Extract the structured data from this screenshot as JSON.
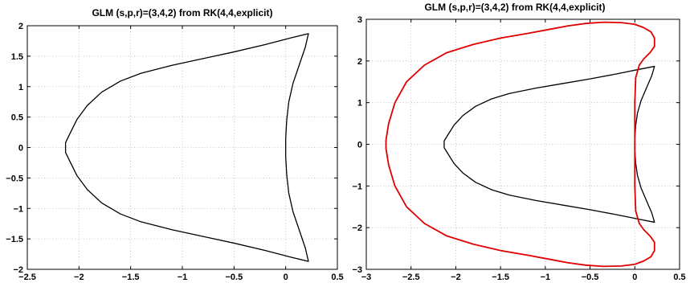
{
  "chart_data": [
    {
      "type": "line",
      "title": "GLM (s,p,r)=(3,4,2) from RK(4,4,explicit)",
      "xlabel": "",
      "ylabel": "",
      "xlim": [
        -2.5,
        0.5
      ],
      "ylim": [
        -2,
        2
      ],
      "xticks": [
        -2.5,
        -2,
        -1.5,
        -1,
        -0.5,
        0,
        0.5
      ],
      "xtick_labels": [
        "−2.5",
        "−2",
        "−1.5",
        "−1",
        "−0.5",
        "0",
        "0.5"
      ],
      "yticks": [
        -2,
        -1.5,
        -1,
        -0.5,
        0,
        0.5,
        1,
        1.5,
        2
      ],
      "ytick_labels": [
        "−2",
        "−1.5",
        "−1",
        "−0.5",
        "0",
        "0.5",
        "1",
        "1.5",
        "2"
      ],
      "grid": true,
      "series": [
        {
          "color": "#000000",
          "x": [
            0.22,
            0.05,
            -0.2,
            -0.5,
            -0.8,
            -1.1,
            -1.4,
            -1.6,
            -1.78,
            -1.92,
            -2.02,
            -2.09,
            -2.13,
            -2.13,
            -2.09,
            -2.02,
            -1.92,
            -1.78,
            -1.6,
            -1.4,
            -1.1,
            -0.8,
            -0.5,
            -0.2,
            0.05,
            0.22,
            0.19,
            0.13,
            0.07,
            0.03,
            0.01,
            0.0,
            0.0,
            0.0,
            0.01,
            0.03,
            0.07,
            0.13,
            0.19,
            0.22
          ],
          "y": [
            1.87,
            1.8,
            1.69,
            1.57,
            1.46,
            1.35,
            1.22,
            1.09,
            0.91,
            0.69,
            0.46,
            0.22,
            0.08,
            -0.08,
            -0.22,
            -0.46,
            -0.69,
            -0.91,
            -1.09,
            -1.22,
            -1.35,
            -1.46,
            -1.57,
            -1.69,
            -1.8,
            -1.87,
            -1.65,
            -1.35,
            -1.05,
            -0.75,
            -0.45,
            -0.15,
            0.0,
            0.15,
            0.45,
            0.75,
            1.05,
            1.35,
            1.65,
            1.87
          ]
        }
      ]
    },
    {
      "type": "line",
      "title": "GLM (s,p,r)=(3,4,2) from RK(4,4,explicit)",
      "xlabel": "",
      "ylabel": "",
      "xlim": [
        -3,
        0.5
      ],
      "ylim": [
        -3,
        3
      ],
      "xticks": [
        -3,
        -2.5,
        -2,
        -1.5,
        -1,
        -0.5,
        0,
        0.5
      ],
      "xtick_labels": [
        "−3",
        "−2.5",
        "−2",
        "−1.5",
        "−1",
        "−0.5",
        "0",
        "0.5"
      ],
      "yticks": [
        -3,
        -2,
        -1,
        0,
        1,
        2,
        3
      ],
      "ytick_labels": [
        "−3",
        "−2",
        "−1",
        "0",
        "1",
        "2",
        "3"
      ],
      "grid": true,
      "series": [
        {
          "color": "#000000",
          "x": [
            0.22,
            0.05,
            -0.2,
            -0.5,
            -0.8,
            -1.1,
            -1.4,
            -1.6,
            -1.78,
            -1.92,
            -2.02,
            -2.09,
            -2.13,
            -2.13,
            -2.09,
            -2.02,
            -1.92,
            -1.78,
            -1.6,
            -1.4,
            -1.1,
            -0.8,
            -0.5,
            -0.2,
            0.05,
            0.22,
            0.19,
            0.13,
            0.07,
            0.03,
            0.01,
            0.0,
            0.0,
            0.0,
            0.01,
            0.03,
            0.07,
            0.13,
            0.19,
            0.22
          ],
          "y": [
            1.87,
            1.8,
            1.69,
            1.57,
            1.46,
            1.35,
            1.22,
            1.09,
            0.91,
            0.69,
            0.46,
            0.22,
            0.08,
            -0.08,
            -0.22,
            -0.46,
            -0.69,
            -0.91,
            -1.09,
            -1.22,
            -1.35,
            -1.46,
            -1.57,
            -1.69,
            -1.8,
            -1.87,
            -1.65,
            -1.35,
            -1.05,
            -0.75,
            -0.45,
            -0.15,
            0.0,
            0.15,
            0.45,
            0.75,
            1.05,
            1.35,
            1.65,
            1.87
          ]
        },
        {
          "color": "#e00000",
          "x": [
            0.0,
            0.0,
            0.01,
            0.05,
            0.1,
            0.17,
            0.22,
            0.22,
            0.18,
            0.1,
            0.0,
            -0.15,
            -0.35,
            -0.55,
            -0.75,
            -0.95,
            -1.2,
            -1.5,
            -1.8,
            -2.1,
            -2.35,
            -2.55,
            -2.68,
            -2.75,
            -2.78,
            -2.78,
            -2.78,
            -2.75,
            -2.68,
            -2.55,
            -2.35,
            -2.1,
            -1.8,
            -1.5,
            -1.2,
            -0.95,
            -0.75,
            -0.55,
            -0.35,
            -0.15,
            0.0,
            0.1,
            0.18,
            0.22,
            0.22,
            0.17,
            0.1,
            0.05,
            0.01,
            0.0,
            0.0
          ],
          "y": [
            0.0,
            1.0,
            1.6,
            1.9,
            2.05,
            2.2,
            2.35,
            2.55,
            2.7,
            2.8,
            2.88,
            2.92,
            2.93,
            2.9,
            2.84,
            2.76,
            2.66,
            2.55,
            2.4,
            2.2,
            1.9,
            1.5,
            1.0,
            0.5,
            0.1,
            0.0,
            -0.1,
            -0.5,
            -1.0,
            -1.5,
            -1.9,
            -2.2,
            -2.4,
            -2.55,
            -2.66,
            -2.76,
            -2.84,
            -2.9,
            -2.93,
            -2.92,
            -2.88,
            -2.8,
            -2.7,
            -2.55,
            -2.35,
            -2.2,
            -2.05,
            -1.9,
            -1.6,
            -1.0,
            0.0
          ]
        }
      ]
    }
  ]
}
